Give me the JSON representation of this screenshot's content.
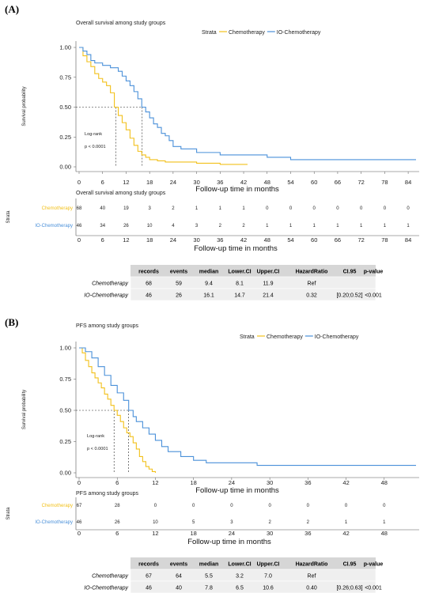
{
  "colors": {
    "chemo": "#F2C01A",
    "io": "#4A90D9",
    "header_bg": "#D6D6D6",
    "row_bg": "#EFEFEF"
  },
  "panels": [
    {
      "letter": "(A)",
      "title": "Overall survival among study groups",
      "legend_title": "Strata",
      "ylabel": "Survival probability",
      "xlabel": "Follow-up time in months",
      "yticks": [
        "0.00",
        "0.25",
        "0.50",
        "0.75",
        "1.00"
      ],
      "xticks": [
        "0",
        "6",
        "12",
        "18",
        "24",
        "30",
        "36",
        "42",
        "48",
        "54",
        "60",
        "66",
        "72",
        "78",
        "84"
      ],
      "logrank": "Log-rank",
      "pvalue": "p < 0.0001",
      "risk_title": "Overall survival among study groups",
      "risk_strata_label": "Strata",
      "risk_xlabel": "Follow-up time in months",
      "risk_xticks": [
        "0",
        "6",
        "12",
        "18",
        "24",
        "30",
        "36",
        "42",
        "48",
        "54",
        "60",
        "66",
        "72",
        "78",
        "84"
      ],
      "risk_rows": [
        {
          "name": "Chemotherapy",
          "values": [
            "68",
            "40",
            "19",
            "3",
            "2",
            "1",
            "1",
            "1",
            "0",
            "0",
            "0",
            "0",
            "0",
            "0",
            "0"
          ]
        },
        {
          "name": "IO-Chemotherapy",
          "values": [
            "46",
            "34",
            "26",
            "10",
            "4",
            "3",
            "2",
            "2",
            "1",
            "1",
            "1",
            "1",
            "1",
            "1",
            "1"
          ]
        }
      ],
      "table": {
        "headers": [
          "records",
          "events",
          "median",
          "Lower.CI",
          "Upper.CI",
          "HazardRatio",
          "CI.95",
          "p-value"
        ],
        "rows": [
          {
            "name": "Chemotherapy",
            "cells": [
              "68",
              "59",
              "9.4",
              "8.1",
              "11.9",
              "Ref",
              "",
              ""
            ]
          },
          {
            "name": "IO-Chemotherapy",
            "cells": [
              "46",
              "26",
              "16.1",
              "14.7",
              "21.4",
              "0.32",
              "[0.20;0.52]",
              "<0.001"
            ]
          }
        ]
      }
    },
    {
      "letter": "(B)",
      "title": "PFS among study groups",
      "legend_title": "Strata",
      "ylabel": "Survival probability",
      "xlabel": "Follow-up time in months",
      "yticks": [
        "0.00",
        "0.25",
        "0.50",
        "0.75",
        "1.00"
      ],
      "xticks": [
        "0",
        "6",
        "12",
        "18",
        "24",
        "30",
        "36",
        "42",
        "48"
      ],
      "logrank": "Log-rank",
      "pvalue": "p < 0.0001",
      "risk_title": "PFS among study groups",
      "risk_strata_label": "Strata",
      "risk_xlabel": "Follow-up time in months",
      "risk_xticks": [
        "0",
        "6",
        "12",
        "18",
        "24",
        "30",
        "36",
        "42",
        "48"
      ],
      "risk_rows": [
        {
          "name": "Chemotherapy",
          "values": [
            "67",
            "28",
            "0",
            "0",
            "0",
            "0",
            "0",
            "0",
            "0"
          ]
        },
        {
          "name": "IO-Chemotherapy",
          "values": [
            "46",
            "26",
            "10",
            "5",
            "3",
            "2",
            "2",
            "1",
            "1"
          ]
        }
      ],
      "table": {
        "headers": [
          "records",
          "events",
          "median",
          "Lower.CI",
          "Upper.CI",
          "HazardRatio",
          "CI.95",
          "p-value"
        ],
        "rows": [
          {
            "name": "Chemotherapy",
            "cells": [
              "67",
              "64",
              "5.5",
              "3.2",
              "7.0",
              "Ref",
              "",
              ""
            ]
          },
          {
            "name": "IO-Chemotherapy",
            "cells": [
              "46",
              "40",
              "7.8",
              "6.5",
              "10.6",
              "0.40",
              "[0.26;0.63]",
              "<0.001"
            ]
          }
        ]
      }
    }
  ],
  "chart_data": [
    {
      "type": "line",
      "title": "Overall survival among study groups",
      "xlabel": "Follow-up time in months",
      "ylabel": "Survival probability",
      "xlim": [
        0,
        86
      ],
      "ylim": [
        0,
        1
      ],
      "medians": [
        9.4,
        16.1
      ],
      "series": [
        {
          "name": "Chemotherapy",
          "x": [
            0,
            1,
            2,
            3,
            4,
            5,
            6,
            7,
            8,
            9,
            10,
            11,
            12,
            13,
            14,
            15,
            16,
            17,
            18,
            20,
            22,
            24,
            30,
            36,
            40,
            43
          ],
          "y": [
            1.0,
            0.93,
            0.88,
            0.84,
            0.78,
            0.74,
            0.71,
            0.68,
            0.62,
            0.5,
            0.43,
            0.37,
            0.31,
            0.24,
            0.18,
            0.13,
            0.1,
            0.08,
            0.06,
            0.05,
            0.04,
            0.04,
            0.03,
            0.02,
            0.02,
            0.02
          ]
        },
        {
          "name": "IO-Chemotherapy",
          "x": [
            0,
            1,
            2,
            3,
            4,
            6,
            8,
            10,
            11,
            12,
            13,
            14,
            15,
            16,
            17,
            18,
            19,
            20,
            21,
            22,
            23,
            24,
            26,
            30,
            36,
            42,
            48,
            54,
            60,
            70,
            80,
            86
          ],
          "y": [
            1.0,
            0.97,
            0.94,
            0.89,
            0.87,
            0.85,
            0.83,
            0.8,
            0.76,
            0.72,
            0.68,
            0.63,
            0.57,
            0.5,
            0.46,
            0.41,
            0.36,
            0.33,
            0.28,
            0.26,
            0.22,
            0.17,
            0.15,
            0.12,
            0.1,
            0.1,
            0.08,
            0.06,
            0.06,
            0.06,
            0.06,
            0.06
          ]
        }
      ]
    },
    {
      "type": "line",
      "title": "PFS among study groups",
      "xlabel": "Follow-up time in months",
      "ylabel": "Survival probability",
      "xlim": [
        0,
        53
      ],
      "ylim": [
        0,
        1
      ],
      "medians": [
        5.5,
        7.8
      ],
      "series": [
        {
          "name": "Chemotherapy",
          "x": [
            0,
            0.5,
            1,
            1.5,
            2,
            2.5,
            3,
            3.5,
            4,
            4.5,
            5,
            5.5,
            6,
            6.5,
            7,
            7.5,
            8,
            8.5,
            9,
            9.5,
            10,
            10.5,
            11,
            11.5,
            12
          ],
          "y": [
            1.0,
            0.96,
            0.9,
            0.85,
            0.8,
            0.76,
            0.72,
            0.68,
            0.63,
            0.59,
            0.54,
            0.5,
            0.46,
            0.41,
            0.36,
            0.32,
            0.29,
            0.24,
            0.19,
            0.13,
            0.09,
            0.05,
            0.03,
            0.01,
            0.0
          ]
        },
        {
          "name": "IO-Chemotherapy",
          "x": [
            0,
            1,
            2,
            3,
            4,
            5,
            6,
            7,
            7.8,
            8.5,
            9,
            10,
            11,
            12,
            13,
            14,
            16,
            18,
            20,
            24,
            28,
            30,
            36,
            42,
            48,
            53
          ],
          "y": [
            1.0,
            0.97,
            0.92,
            0.85,
            0.78,
            0.7,
            0.64,
            0.58,
            0.5,
            0.45,
            0.41,
            0.36,
            0.31,
            0.26,
            0.21,
            0.17,
            0.13,
            0.1,
            0.08,
            0.08,
            0.06,
            0.06,
            0.06,
            0.06,
            0.06,
            0.06
          ]
        }
      ]
    }
  ]
}
